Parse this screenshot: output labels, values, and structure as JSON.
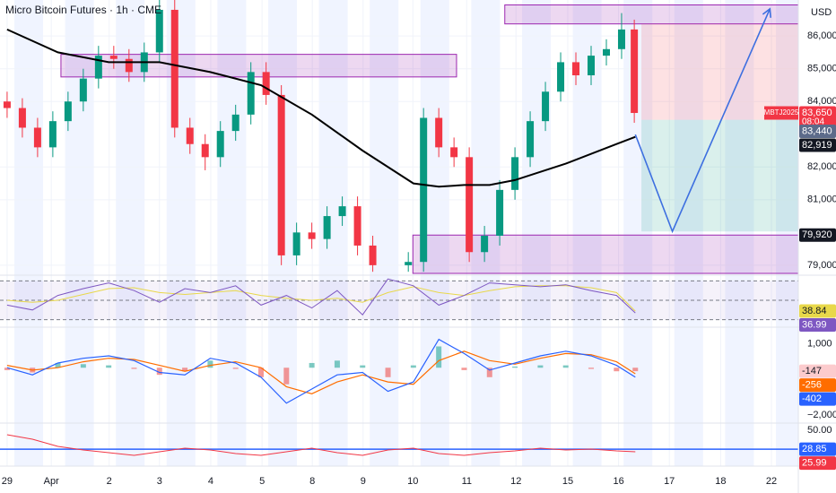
{
  "chart_data": {
    "type": "candlestick",
    "title": "Micro Bitcoin Futures · 1h · CME",
    "currency": "USD",
    "up_color": "#089981",
    "down_color": "#f23645",
    "x": [
      0,
      0.3,
      0.6,
      0.9,
      1.2,
      1.5,
      1.8,
      2.1,
      2.4,
      2.7,
      3.0,
      3.3,
      3.6,
      3.9,
      4.2,
      4.5,
      4.8,
      5.1,
      5.4,
      5.7,
      6.0,
      6.3,
      6.6,
      6.9,
      7.2,
      7.9,
      8.2,
      8.5,
      8.8,
      9.1,
      9.4,
      9.7,
      10.0,
      10.3,
      10.6,
      10.9,
      11.2,
      11.5,
      11.8,
      12.1,
      12.35
    ],
    "open": [
      84000,
      83800,
      83200,
      82600,
      83400,
      84000,
      84700,
      85400,
      85300,
      84900,
      85500,
      86800,
      83200,
      82700,
      82300,
      83100,
      83600,
      84900,
      84200,
      79300,
      80000,
      79800,
      80500,
      80800,
      79600,
      79000,
      79100,
      83500,
      82600,
      82300,
      79400,
      79900,
      81300,
      82300,
      83400,
      84300,
      85200,
      84800,
      85400,
      85600,
      86200
    ],
    "high": [
      84300,
      84100,
      83500,
      83700,
      84300,
      85000,
      85700,
      85700,
      85600,
      85800,
      87200,
      87100,
      83500,
      83000,
      83400,
      83900,
      85200,
      85200,
      84500,
      80300,
      80300,
      80800,
      81100,
      81100,
      79900,
      79400,
      83800,
      83800,
      82900,
      82600,
      80200,
      81600,
      82600,
      83700,
      84600,
      85500,
      85500,
      85700,
      85900,
      86700,
      86500
    ],
    "low": [
      83500,
      82900,
      82300,
      82300,
      83100,
      83700,
      84400,
      85000,
      84600,
      84600,
      85200,
      82900,
      82400,
      81900,
      82000,
      82800,
      83300,
      83900,
      79000,
      79000,
      79500,
      79500,
      80200,
      79300,
      78800,
      78800,
      78800,
      82300,
      82000,
      79100,
      79100,
      79600,
      81000,
      82000,
      83100,
      84000,
      84500,
      84500,
      85100,
      85300,
      83350
    ],
    "close": [
      83800,
      83200,
      82600,
      83400,
      84000,
      84700,
      85400,
      85300,
      84900,
      85500,
      86800,
      83200,
      82700,
      82300,
      83100,
      83600,
      84900,
      84200,
      79300,
      80000,
      79800,
      80500,
      80800,
      79600,
      79000,
      79100,
      83500,
      82600,
      82300,
      79400,
      79900,
      81300,
      82300,
      83400,
      84300,
      85200,
      84800,
      85400,
      85600,
      86200,
      83650
    ],
    "xlim": [
      -0.14,
      15.58
    ],
    "xticks": [
      {
        "value": 0,
        "label": "29"
      },
      {
        "value": 0.87,
        "label": "Apr"
      },
      {
        "value": 2.01,
        "label": "2"
      },
      {
        "value": 3.0,
        "label": "3"
      },
      {
        "value": 4.01,
        "label": "4"
      },
      {
        "value": 5.02,
        "label": "5"
      },
      {
        "value": 6.01,
        "label": "8"
      },
      {
        "value": 7.01,
        "label": "9"
      },
      {
        "value": 7.99,
        "label": "10"
      },
      {
        "value": 9.05,
        "label": "11"
      },
      {
        "value": 10.02,
        "label": "12"
      },
      {
        "value": 11.04,
        "label": "15"
      },
      {
        "value": 12.04,
        "label": "16"
      },
      {
        "value": 13.04,
        "label": "17"
      },
      {
        "value": 14.05,
        "label": "18"
      },
      {
        "value": 15.05,
        "label": "22"
      }
    ],
    "ylim": [
      78750,
      87100
    ],
    "yticks": [
      {
        "value": 79000,
        "label": "79,000"
      },
      {
        "value": 81000,
        "label": "81,000"
      },
      {
        "value": 82000,
        "label": "82,000"
      },
      {
        "value": 84000,
        "label": "84,000"
      },
      {
        "value": 85000,
        "label": "85,000"
      },
      {
        "value": 86000,
        "label": "86,000"
      }
    ],
    "ma": {
      "color": "#000000",
      "x": [
        0,
        1,
        2,
        3,
        4,
        5,
        6,
        7,
        8,
        8.5,
        9,
        9.5,
        10,
        11,
        12,
        12.37
      ],
      "values": [
        86200,
        85500,
        85200,
        85200,
        84900,
        84500,
        83600,
        82500,
        81500,
        81400,
        81450,
        81450,
        81600,
        82100,
        82700,
        82919
      ]
    },
    "zones": [
      {
        "x": [
          1.06,
          8.85
        ],
        "y": [
          84750,
          85440
        ]
      },
      {
        "x": [
          9.8,
          15.67
        ],
        "y": [
          86370,
          86950
        ]
      },
      {
        "x": [
          7.99,
          15.58
        ],
        "y": [
          78750,
          79920
        ]
      }
    ],
    "position": {
      "x": [
        12.49,
        15.58
      ],
      "stop": 86370,
      "entry": 83440,
      "target": 80030
    },
    "projection": {
      "color": "#3d6fe0",
      "x": [
        12.37,
        13.1,
        15.02
      ],
      "y": [
        82990,
        80030,
        86830
      ]
    },
    "price_tags": [
      {
        "value": 83650,
        "label": "83,650",
        "color": "#f23645"
      },
      {
        "value": 83440,
        "label": "83,440",
        "color": "#5d6b8a"
      },
      {
        "value": 82919,
        "label": "82,919",
        "color": "#131722"
      },
      {
        "value": 79920,
        "label": "79,920",
        "color": "#131722"
      }
    ],
    "symbol_tag": {
      "label": "MBTJ2025",
      "countdown": "08:04"
    },
    "ind_x": [
      0,
      0.5,
      1,
      1.5,
      2,
      2.5,
      3,
      3.5,
      4,
      4.5,
      5,
      5.5,
      6,
      6.5,
      7,
      7.5,
      8,
      8.5,
      9,
      9.5,
      10,
      10.5,
      11,
      11.5,
      12,
      12.37
    ],
    "rsi": {
      "ylim": [
        25,
        75
      ],
      "levels": [
        70,
        50,
        30
      ],
      "color": "#7e57c2",
      "ma_color": "#e8d84a",
      "values": [
        45,
        40,
        55,
        62,
        68,
        60,
        48,
        62,
        58,
        65,
        45,
        55,
        42,
        60,
        35,
        72,
        65,
        45,
        55,
        68,
        66,
        64,
        66,
        60,
        55,
        36.99
      ],
      "ma_values": [
        50,
        48,
        50,
        56,
        62,
        63,
        58,
        56,
        58,
        60,
        55,
        52,
        50,
        52,
        48,
        58,
        64,
        58,
        55,
        60,
        64,
        65,
        65,
        63,
        58,
        38.84
      ]
    },
    "macd": {
      "ylim": [
        -2340,
        1600
      ],
      "yticks": [
        {
          "value": 1000,
          "label": "1,000"
        },
        {
          "value": -2000,
          "label": "−2,000"
        }
      ],
      "color": "#2962ff",
      "signal_color": "#ff6d00",
      "values": [
        0,
        -300,
        200,
        400,
        500,
        300,
        -200,
        -300,
        400,
        200,
        -400,
        -1500,
        -900,
        -300,
        -200,
        -1000,
        -600,
        1200,
        600,
        -100,
        200,
        500,
        700,
        500,
        100,
        -402
      ],
      "signal": [
        100,
        -100,
        0,
        250,
        400,
        350,
        100,
        -150,
        100,
        250,
        0,
        -800,
        -1100,
        -600,
        -300,
        -600,
        -700,
        300,
        700,
        300,
        150,
        400,
        600,
        550,
        250,
        -256
      ],
      "histogram": [
        -100,
        -200,
        200,
        150,
        100,
        -50,
        -300,
        -150,
        300,
        -50,
        -400,
        -700,
        200,
        300,
        100,
        -400,
        100,
        900,
        -100,
        -400,
        50,
        100,
        100,
        -50,
        -150,
        -147
      ]
    },
    "adx": {
      "ylim": [
        15,
        57
      ],
      "yticks": [
        {
          "value": 50,
          "label": "50.00"
        }
      ],
      "color": "#f23645",
      "level": 28.85,
      "level_color": "#2962ff",
      "values": [
        45,
        40,
        32,
        28,
        25,
        22,
        26,
        30,
        28,
        24,
        22,
        26,
        30,
        25,
        22,
        28,
        30,
        24,
        22,
        25,
        27,
        30,
        28,
        29,
        27,
        25.99
      ]
    }
  }
}
